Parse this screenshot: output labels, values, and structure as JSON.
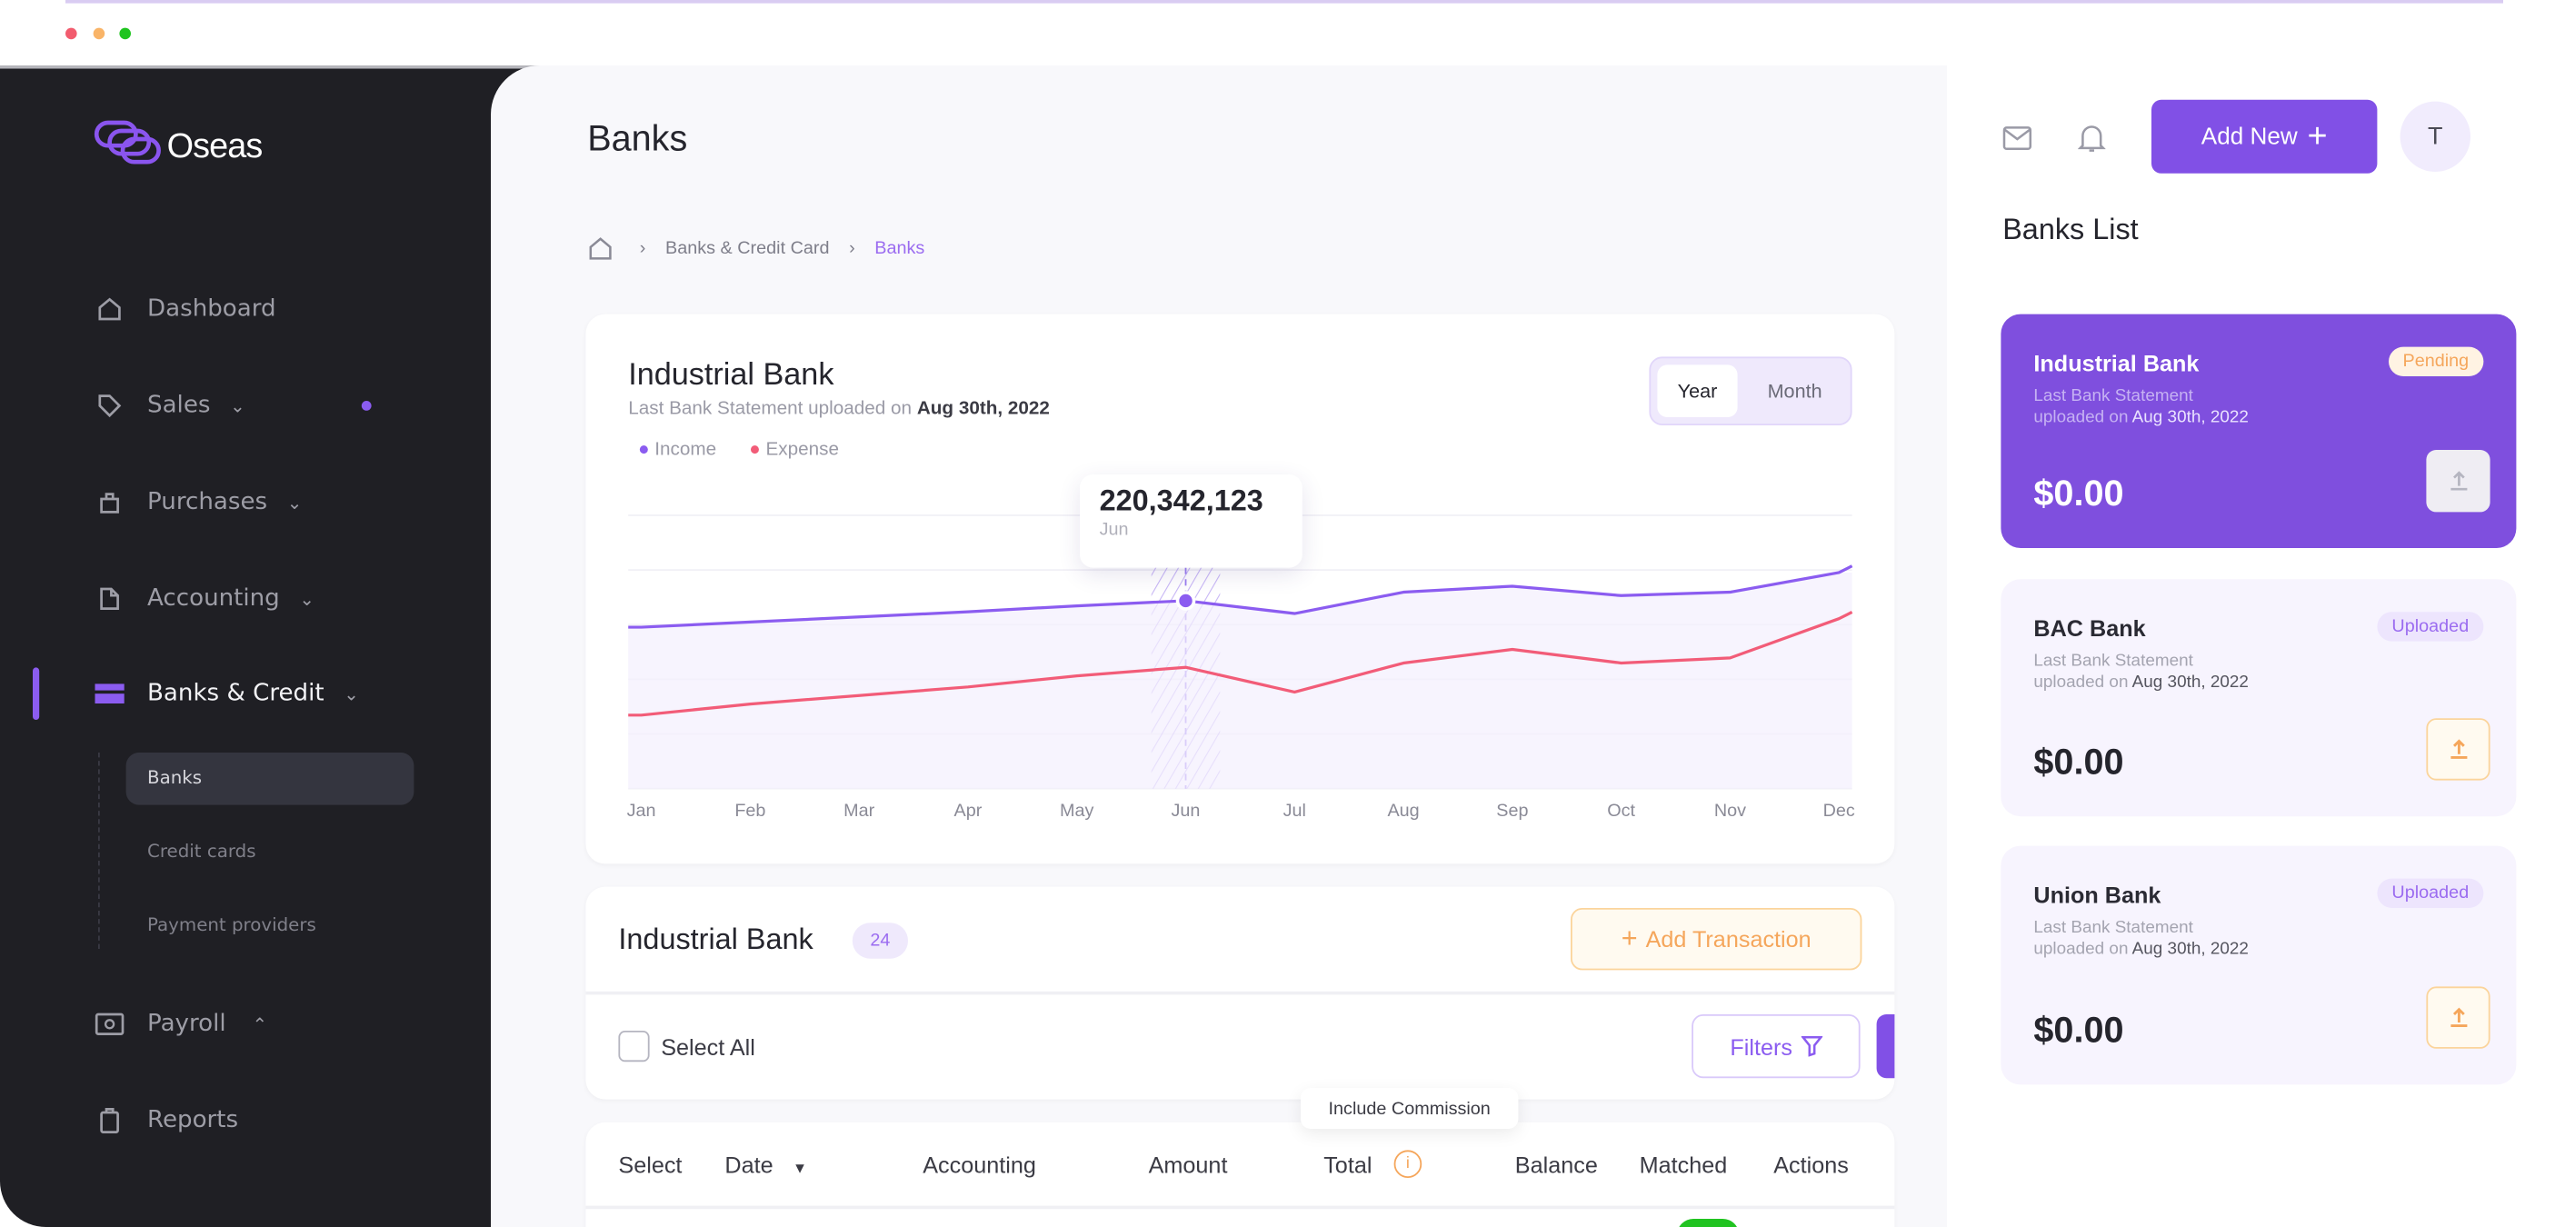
{
  "window": {
    "controls": [
      "close",
      "minimize",
      "maximize"
    ],
    "colors": {
      "close": "#f25c6e",
      "minimize": "#f9b468",
      "maximize": "#1ec41e"
    }
  },
  "brand": {
    "name": "Oseas",
    "accent": "#7c4ddc"
  },
  "sidebar": {
    "items": [
      {
        "label": "Dashboard",
        "icon": "home-icon"
      },
      {
        "label": "Sales",
        "icon": "tag-icon",
        "expandable": true,
        "notification": true
      },
      {
        "label": "Purchases",
        "icon": "shopping-bag-icon",
        "expandable": true
      },
      {
        "label": "Accounting",
        "icon": "document-icon",
        "expandable": true
      },
      {
        "label": "Banks & Credit",
        "icon": "credit-card-icon",
        "expandable": true,
        "active": true
      },
      {
        "label": "Payroll",
        "icon": "money-icon",
        "expanded": true
      },
      {
        "label": "Reports",
        "icon": "clipboard-icon"
      }
    ],
    "subitems": [
      {
        "label": "Banks",
        "active": true
      },
      {
        "label": "Credit cards"
      },
      {
        "label": "Payment providers"
      }
    ]
  },
  "header": {
    "title": "Banks",
    "breadcrumb": [
      "Banks & Credit Card",
      "Banks"
    ]
  },
  "chart_card": {
    "title": "Industrial Bank",
    "subtitle_prefix": "Last Bank Statement uploaded on",
    "subtitle_date": "Aug 30th, 2022",
    "toggle": [
      "Year",
      "Month"
    ],
    "toggle_selected": "Year",
    "tooltip": {
      "value": "220,342,123",
      "label": "Jun"
    }
  },
  "chart_data": {
    "type": "line",
    "categories": [
      "Jan",
      "Feb",
      "Mar",
      "Apr",
      "May",
      "Jun",
      "Jul",
      "Aug",
      "Sep",
      "Oct",
      "Nov",
      "Dec"
    ],
    "series": [
      {
        "name": "Income",
        "color": "#8b5cf0",
        "values": [
          189,
          195,
          201,
          207,
          214,
          220,
          205,
          230,
          237,
          226,
          230,
          253
        ]
      },
      {
        "name": "Expense",
        "color": "#f25c78",
        "values": [
          86,
          99,
          109,
          119,
          132,
          142,
          113,
          147,
          163,
          147,
          153,
          199
        ]
      }
    ],
    "highlight": "Jun",
    "ylim": [
      0,
      320
    ],
    "grid": true,
    "legend": "top-left"
  },
  "transactions": {
    "title": "Industrial Bank",
    "count": "24",
    "add_label": "Add Transaction",
    "select_all": "Select All",
    "filters": "Filters",
    "columns": [
      "Select",
      "Date",
      "Accounting",
      "Amount",
      "Total",
      "Balance",
      "Matched",
      "Actions"
    ],
    "total_tooltip": "Include Commission"
  },
  "topbar": {
    "add_new": "Add New",
    "avatar": "T"
  },
  "banks_list": {
    "title": "Banks List",
    "statement_line1": "Last Bank Statement",
    "statement_line2": "uploaded on",
    "items": [
      {
        "name": "Industrial Bank",
        "status": "Pending",
        "date": "Aug 30th, 2022",
        "amount": "$0.00",
        "selected": true
      },
      {
        "name": "BAC Bank",
        "status": "Uploaded",
        "date": "Aug 30th, 2022",
        "amount": "$0.00"
      },
      {
        "name": "Union Bank",
        "status": "Uploaded",
        "date": "Aug 30th, 2022",
        "amount": "$0.00"
      }
    ]
  }
}
